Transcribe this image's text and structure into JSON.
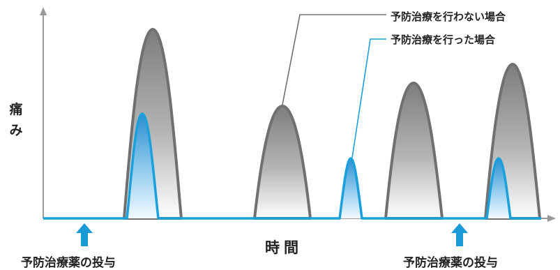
{
  "figure": {
    "y_axis_label": "痛み",
    "x_axis_label": "時間",
    "dose_labels": [
      "予防治療薬の投与",
      "予防治療薬の投与"
    ],
    "legend": {
      "without_treatment": "予防治療を行わない場合",
      "with_treatment": "予防治療を行った場合"
    },
    "colors": {
      "axis": "#9a9a9a",
      "without_treatment_stroke": "#707070",
      "with_treatment_stroke": "#1aa0dc",
      "dose_arrow": "#1a9ad6"
    }
  }
}
